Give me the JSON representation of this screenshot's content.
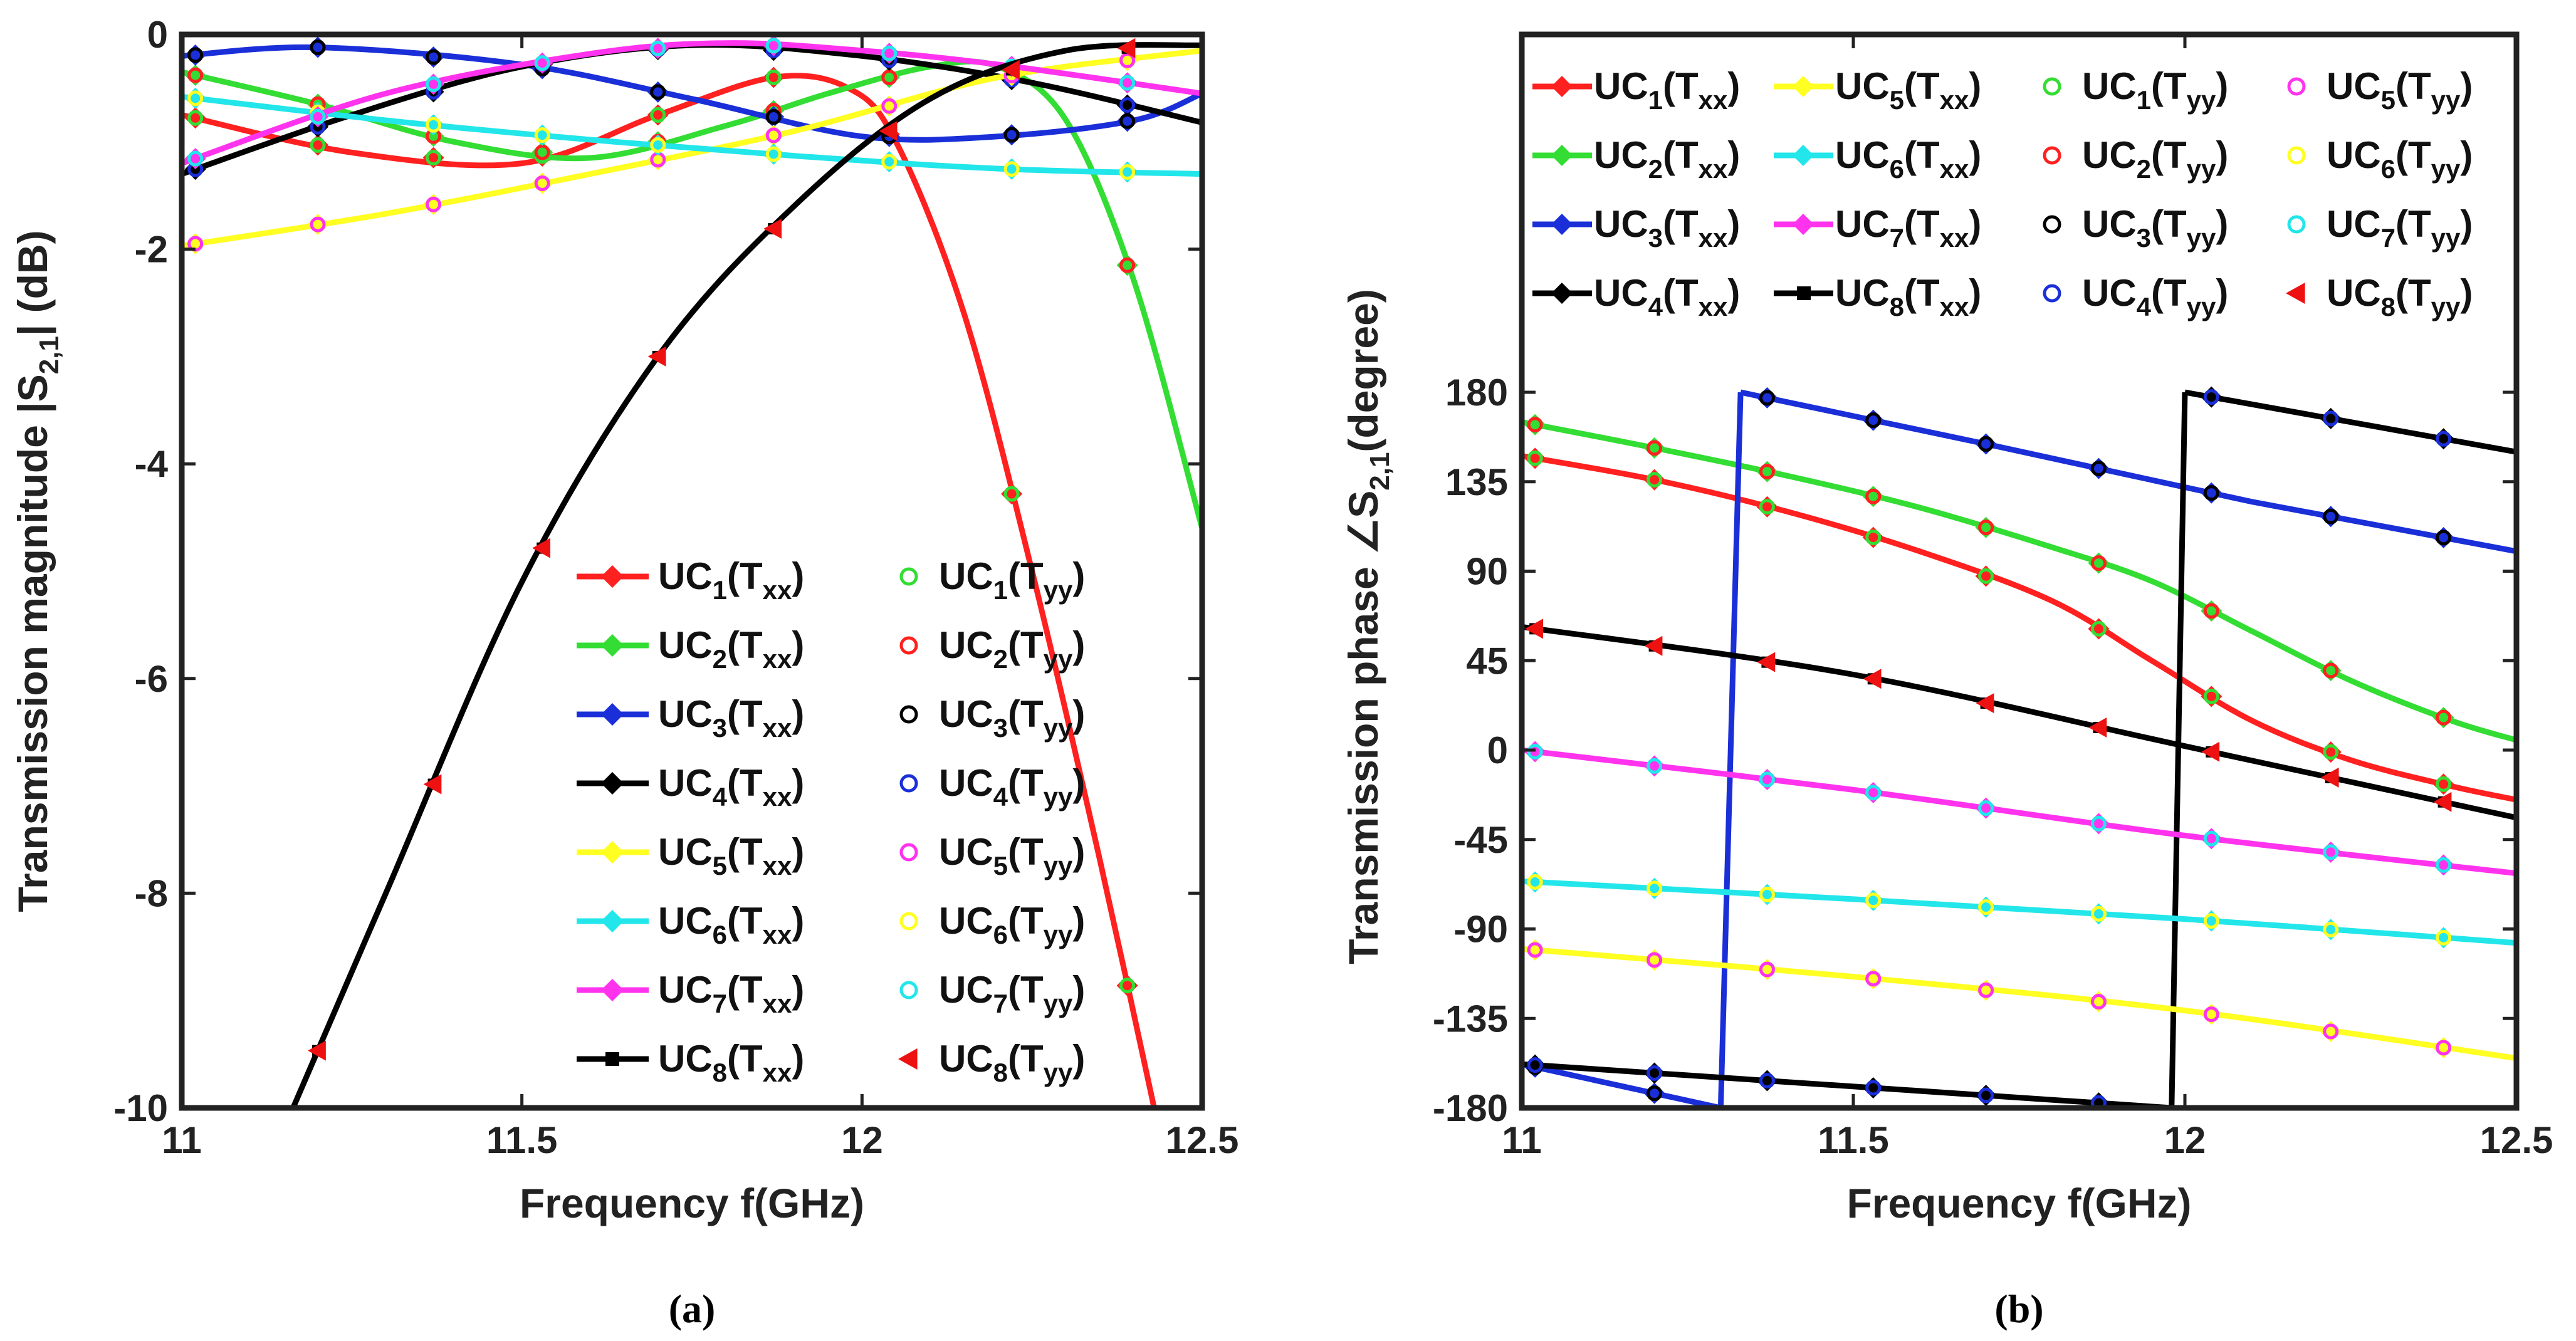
{
  "colors": {
    "uc1": "#ff2020",
    "uc2": "#33dd33",
    "uc3": "#1a2fd8",
    "uc4": "#000000",
    "uc5": "#ffff22",
    "uc6": "#22e6ea",
    "uc7": "#ff33ee",
    "uc8": "#000000",
    "uc8_yy": "#ee1111",
    "axis": "#222222"
  },
  "chart_data": [
    {
      "id": "a",
      "type": "line",
      "caption": "(a)",
      "xlabel": "Frequency f(GHz)",
      "ylabel_main": "Transmission magnitude  |S",
      "ylabel_sub": "2,1",
      "ylabel_tail": "| (dB)",
      "xlim": [
        11,
        12.5
      ],
      "ylim": [
        -10,
        0
      ],
      "xticks": [
        11,
        11.5,
        12,
        12.5
      ],
      "xtick_labels": [
        "11",
        "11.5",
        "12",
        "12.5"
      ],
      "yticks": [
        0,
        -2,
        -4,
        -6,
        -8,
        -10
      ],
      "ytick_labels": [
        "0",
        "-2",
        "-4",
        "-6",
        "-8",
        "-10"
      ],
      "legend_position": "bottom-right",
      "legend_labels": [
        "UC1(Txx)",
        "UC1(Tyy)",
        "UC2(Txx)",
        "UC2(Tyy)",
        "UC3(Txx)",
        "UC3(Tyy)",
        "UC4(Txx)",
        "UC4(Tyy)",
        "UC5(Txx)",
        "UC5(Tyy)",
        "UC6(Txx)",
        "UC6(Tyy)",
        "UC7(Txx)",
        "UC7(Tyy)",
        "UC8(Txx)",
        "UC8(Tyy)"
      ],
      "marker_x": [
        11.02,
        11.2,
        11.37,
        11.53,
        11.7,
        11.87,
        12.04,
        12.22,
        12.39
      ],
      "series": [
        {
          "name": "UC1",
          "x": [
            11.0,
            11.25,
            11.5,
            11.7,
            11.87,
            11.98,
            12.05,
            12.15,
            12.25,
            12.35,
            12.45
          ],
          "y": [
            -0.75,
            -1.1,
            -1.2,
            -0.75,
            -0.4,
            -0.5,
            -1.0,
            -2.6,
            -5.0,
            -7.7,
            -10.6
          ]
        },
        {
          "name": "UC2",
          "x": [
            11.0,
            11.2,
            11.4,
            11.6,
            11.8,
            11.95,
            12.1,
            12.2,
            12.3,
            12.4,
            12.5
          ],
          "y": [
            -0.35,
            -0.65,
            -1.0,
            -1.15,
            -0.85,
            -0.55,
            -0.3,
            -0.3,
            -0.8,
            -2.3,
            -4.6
          ]
        },
        {
          "name": "UC3",
          "x": [
            11.0,
            11.2,
            11.5,
            11.75,
            12.0,
            12.2,
            12.4,
            12.5
          ],
          "y": [
            -0.2,
            -0.12,
            -0.28,
            -0.6,
            -0.95,
            -0.95,
            -0.8,
            -0.55
          ]
        },
        {
          "name": "UC4",
          "x": [
            11.0,
            11.25,
            11.5,
            11.75,
            12.0,
            12.25,
            12.5
          ],
          "y": [
            -1.3,
            -0.75,
            -0.3,
            -0.1,
            -0.2,
            -0.45,
            -0.82
          ]
        },
        {
          "name": "UC5",
          "x": [
            11.0,
            11.3,
            11.6,
            11.9,
            12.2,
            12.5
          ],
          "y": [
            -1.97,
            -1.67,
            -1.3,
            -0.9,
            -0.4,
            -0.15
          ]
        },
        {
          "name": "UC6",
          "x": [
            11.0,
            11.3,
            11.6,
            11.9,
            12.2,
            12.5
          ],
          "y": [
            -0.58,
            -0.8,
            -0.98,
            -1.13,
            -1.25,
            -1.3
          ]
        },
        {
          "name": "UC7",
          "x": [
            11.0,
            11.3,
            11.6,
            11.8,
            12.0,
            12.2,
            12.5
          ],
          "y": [
            -1.2,
            -0.55,
            -0.18,
            -0.08,
            -0.15,
            -0.28,
            -0.55
          ]
        },
        {
          "name": "UC8",
          "x": [
            11.15,
            11.3,
            11.5,
            11.7,
            11.9,
            12.1,
            12.3,
            12.5
          ],
          "y": [
            -10.2,
            -8.0,
            -5.1,
            -3.0,
            -1.6,
            -0.6,
            -0.15,
            -0.1
          ]
        }
      ]
    },
    {
      "id": "b",
      "type": "line",
      "caption": "(b)",
      "xlabel": "Frequency f(GHz)",
      "ylabel_main": "Transmission phase  ∠S",
      "ylabel_sub": "2,1",
      "ylabel_tail": "(degree)",
      "xlim": [
        11,
        12.5
      ],
      "ylim": [
        -180,
        360
      ],
      "xticks": [
        11,
        11.5,
        12,
        12.5
      ],
      "xtick_labels": [
        "11",
        "11.5",
        "12",
        "12.5"
      ],
      "yticks": [
        180,
        135,
        90,
        45,
        0,
        -45,
        -90,
        -135,
        -180
      ],
      "ytick_labels": [
        "180",
        "135",
        "90",
        "45",
        "0",
        "-45",
        "-90",
        "-135",
        "-180"
      ],
      "legend_position": "top",
      "legend_labels": [
        "UC1(Txx)",
        "UC5(Txx)",
        "UC1(Tyy)",
        "UC5(Tyy)",
        "UC2(Txx)",
        "UC6(Txx)",
        "UC2(Tyy)",
        "UC6(Tyy)",
        "UC3(Txx)",
        "UC7(Txx)",
        "UC3(Tyy)",
        "UC7(Tyy)",
        "UC4(Txx)",
        "UC8(Txx)",
        "UC4(Tyy)",
        "UC8(Tyy)"
      ],
      "marker_x": [
        11.02,
        11.2,
        11.37,
        11.53,
        11.7,
        11.87,
        12.04,
        12.22,
        12.39
      ],
      "series": [
        {
          "name": "UC1",
          "x": [
            11.0,
            11.2,
            11.4,
            11.6,
            11.8,
            11.95,
            12.1,
            12.25,
            12.4,
            12.5
          ],
          "y": [
            148,
            136,
            120,
            100,
            75,
            45,
            15,
            -5,
            -18,
            -25
          ]
        },
        {
          "name": "UC2",
          "x": [
            11.0,
            11.2,
            11.4,
            11.6,
            11.8,
            11.95,
            12.1,
            12.25,
            12.4,
            12.5
          ],
          "y": [
            165,
            152,
            138,
            122,
            102,
            85,
            60,
            35,
            15,
            5
          ]
        },
        {
          "name": "UC3",
          "segments": [
            {
              "x": [
                11.0,
                11.3
              ],
              "y": [
                -158,
                -180
              ]
            },
            {
              "x": [
                11.3,
                11.33
              ],
              "y": [
                -180,
                180
              ]
            },
            {
              "x": [
                11.33,
                11.7,
                12.1,
                12.5
              ],
              "y": [
                180,
                154,
                125,
                100
              ]
            }
          ]
        },
        {
          "name": "UC4",
          "segments": [
            {
              "x": [
                11.0,
                11.98
              ],
              "y": [
                -158,
                -180
              ]
            },
            {
              "x": [
                11.98,
                12.0
              ],
              "y": [
                -180,
                180
              ]
            },
            {
              "x": [
                12.0,
                12.5
              ],
              "y": [
                180,
                150
              ]
            }
          ]
        },
        {
          "name": "UC5",
          "x": [
            11.0,
            11.5,
            12.0,
            12.5
          ],
          "y": [
            -100,
            -114,
            -131,
            -155
          ]
        },
        {
          "name": "UC6",
          "x": [
            11.0,
            11.5,
            12.0,
            12.5
          ],
          "y": [
            -66,
            -75,
            -85,
            -97
          ]
        },
        {
          "name": "UC7",
          "x": [
            11.0,
            11.5,
            12.0,
            12.5
          ],
          "y": [
            0,
            -20,
            -43,
            -62
          ]
        },
        {
          "name": "UC8",
          "x": [
            11.0,
            11.5,
            12.0,
            12.5
          ],
          "y": [
            62,
            38,
            2,
            -34
          ]
        }
      ]
    }
  ]
}
